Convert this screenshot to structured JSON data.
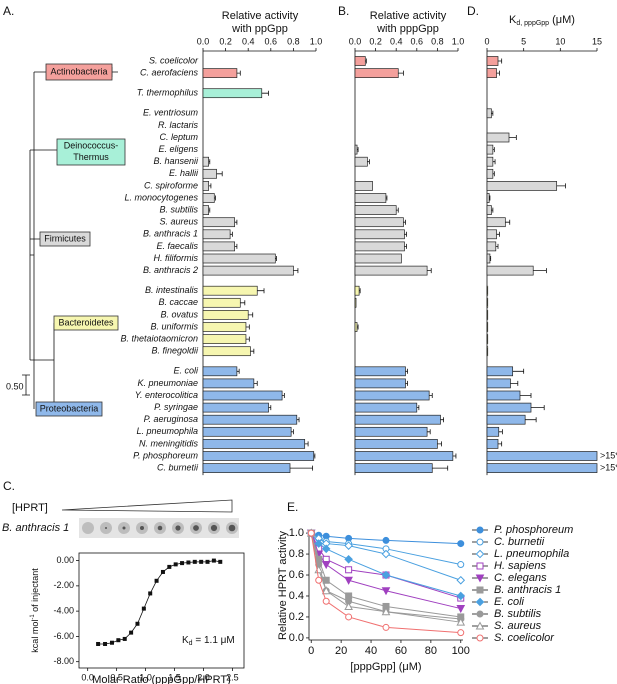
{
  "panel_labels": [
    "A.",
    "B.",
    "C.",
    "D.",
    "E."
  ],
  "tree": {
    "clades": [
      {
        "label": [
          "Actinobacteria"
        ],
        "color": "#f4a09c"
      },
      {
        "label": [
          "Deinococcus-",
          "Thermus"
        ],
        "color": "#a8f0d8"
      },
      {
        "label": [
          "Firmicutes"
        ],
        "color": "#d9d9d9"
      },
      {
        "label": [
          "Bacteroidetes"
        ],
        "color": "#f6f6b0"
      },
      {
        "label": [
          "Proteobacteria"
        ],
        "color": "#8fb8ea"
      }
    ],
    "scale_label": "0.50"
  },
  "gel": {
    "label": "[HPRT]",
    "strain": "B. anthracis 1"
  },
  "chart_data": [
    {
      "type": "hbar",
      "title": [
        "Relative activity",
        "with ppGpp"
      ],
      "categories": [
        "S. coelicolor",
        "C. aerofaciens",
        "T. thermophilus",
        "E. ventriosum",
        "R. lactaris",
        "C. leptum",
        "E. eligens",
        "B. hansenii",
        "E. hallii",
        "C. spiroforme",
        "L. monocytogenes",
        "B. subtilis",
        "S. aureus",
        "B. anthracis 1",
        "E. faecalis",
        "H. filiformis",
        "B. anthracis 2",
        "B. intestinalis",
        "B. caccae",
        "B. ovatus",
        "B. uniformis",
        "B. thetaiotaomicron",
        "B. finegoldii",
        "E. coli",
        "K. pneumoniae",
        "Y. enterocolitica",
        "P. syringae",
        "P. aeruginosa",
        "L. pneumophila",
        "N. meningitidis",
        "P. phosphoreum",
        "C. burnetii"
      ],
      "values": [
        0,
        0.3,
        0.52,
        0,
        0,
        0,
        0,
        0.05,
        0.12,
        0.05,
        0.1,
        0.05,
        0.28,
        0.24,
        0.28,
        0.64,
        0.8,
        0.48,
        0.33,
        0.4,
        0.38,
        0.38,
        0.42,
        0.3,
        0.45,
        0.7,
        0.58,
        0.83,
        0.78,
        0.9,
        0.98,
        0.77
      ],
      "errors": [
        0,
        0.03,
        0.06,
        0,
        0,
        0,
        0,
        0.01,
        0.05,
        0.02,
        0.01,
        0.01,
        0.02,
        0.02,
        0.02,
        0.01,
        0.04,
        0.06,
        0.04,
        0.04,
        0.03,
        0.03,
        0.03,
        0.02,
        0.03,
        0.02,
        0.02,
        0.02,
        0.02,
        0.03,
        0.01,
        0.2
      ],
      "colors": [
        "#f4a09c",
        "#f4a09c",
        "#a8f0d8",
        "#d9d9d9",
        "#d9d9d9",
        "#d9d9d9",
        "#d9d9d9",
        "#d9d9d9",
        "#d9d9d9",
        "#d9d9d9",
        "#d9d9d9",
        "#d9d9d9",
        "#d9d9d9",
        "#d9d9d9",
        "#d9d9d9",
        "#d9d9d9",
        "#d9d9d9",
        "#f6f6b0",
        "#f6f6b0",
        "#f6f6b0",
        "#f6f6b0",
        "#f6f6b0",
        "#f6f6b0",
        "#8fb8ea",
        "#8fb8ea",
        "#8fb8ea",
        "#8fb8ea",
        "#8fb8ea",
        "#8fb8ea",
        "#8fb8ea",
        "#8fb8ea",
        "#8fb8ea"
      ],
      "xlim": [
        0,
        1
      ],
      "xticks": [
        {
          "value": 0,
          "label": "0.0"
        },
        0.2,
        0.4,
        0.6,
        0.8,
        {
          "value": 1,
          "label": "1.0"
        }
      ]
    },
    {
      "type": "hbar",
      "title": [
        "Relative activity",
        "with pppGpp"
      ],
      "values": [
        0.1,
        0.42,
        0,
        0,
        0,
        0,
        0.02,
        0.12,
        0,
        0.17,
        0.3,
        0.4,
        0.47,
        0.48,
        0.48,
        0.45,
        0.7,
        0.04,
        0.01,
        0,
        0.02,
        0,
        0,
        0.49,
        0.49,
        0.72,
        0.6,
        0.83,
        0.7,
        0.8,
        0.95,
        0.75
      ],
      "errors": [
        0.01,
        0.05,
        0,
        0,
        0,
        0,
        0.01,
        0.02,
        0,
        0,
        0.01,
        0.02,
        0.02,
        0.02,
        0.02,
        0,
        0.04,
        0.01,
        0,
        0,
        0.01,
        0,
        0,
        0.02,
        0.02,
        0.03,
        0.02,
        0.03,
        0.03,
        0.04,
        0.03,
        0.15
      ],
      "colors": [
        "#f4a09c",
        "#f4a09c",
        "#a8f0d8",
        "#d9d9d9",
        "#d9d9d9",
        "#d9d9d9",
        "#d9d9d9",
        "#d9d9d9",
        "#d9d9d9",
        "#d9d9d9",
        "#d9d9d9",
        "#d9d9d9",
        "#d9d9d9",
        "#d9d9d9",
        "#d9d9d9",
        "#d9d9d9",
        "#d9d9d9",
        "#f6f6b0",
        "#f6f6b0",
        "#f6f6b0",
        "#f6f6b0",
        "#f6f6b0",
        "#f6f6b0",
        "#8fb8ea",
        "#8fb8ea",
        "#8fb8ea",
        "#8fb8ea",
        "#8fb8ea",
        "#8fb8ea",
        "#8fb8ea",
        "#8fb8ea",
        "#8fb8ea"
      ],
      "xlim": [
        0,
        1
      ],
      "xticks": [
        {
          "value": 0,
          "label": "0.0"
        },
        0.2,
        0.4,
        0.6,
        0.8,
        {
          "value": 1,
          "label": "1.0"
        }
      ]
    },
    {
      "type": "hbar",
      "title": [
        "K",
        "d, pppGpp",
        " (μM)"
      ],
      "values": [
        1.5,
        1.3,
        0,
        0.6,
        0,
        3,
        0.8,
        0.8,
        0.8,
        9.5,
        0.3,
        0.6,
        2.5,
        1.3,
        1.2,
        0.4,
        6.3,
        0.1,
        0.1,
        0.1,
        0.1,
        0.1,
        0.1,
        3.5,
        3.2,
        4.5,
        6,
        5.2,
        1.6,
        1.5,
        15,
        15
      ],
      "errors": [
        0.5,
        0.4,
        0,
        0.2,
        0,
        1,
        0.2,
        0.3,
        0.2,
        1.2,
        0.1,
        0.2,
        0.6,
        0.4,
        0.3,
        0.1,
        1.8,
        0,
        0,
        0,
        0,
        0,
        0,
        1.5,
        1,
        1.5,
        1.8,
        1.5,
        0.5,
        0.5,
        0,
        0
      ],
      "value_labels": [
        null,
        null,
        null,
        null,
        null,
        null,
        null,
        null,
        null,
        null,
        null,
        null,
        null,
        null,
        null,
        null,
        null,
        null,
        null,
        null,
        null,
        null,
        null,
        null,
        null,
        null,
        null,
        null,
        null,
        null,
        ">15*",
        ">15*"
      ],
      "colors": [
        "#f4a09c",
        "#f4a09c",
        "#a8f0d8",
        "#d9d9d9",
        "#d9d9d9",
        "#d9d9d9",
        "#d9d9d9",
        "#d9d9d9",
        "#d9d9d9",
        "#d9d9d9",
        "#d9d9d9",
        "#d9d9d9",
        "#d9d9d9",
        "#d9d9d9",
        "#d9d9d9",
        "#d9d9d9",
        "#d9d9d9",
        "#f6f6b0",
        "#f6f6b0",
        "#f6f6b0",
        "#f6f6b0",
        "#f6f6b0",
        "#f6f6b0",
        "#8fb8ea",
        "#8fb8ea",
        "#8fb8ea",
        "#8fb8ea",
        "#8fb8ea",
        "#8fb8ea",
        "#8fb8ea",
        "#8fb8ea",
        "#8fb8ea"
      ],
      "xlim": [
        0,
        15
      ],
      "xticks": [
        0,
        5,
        10,
        15
      ]
    },
    {
      "type": "scatter",
      "xlabel": "Molar Ratio (pppGpp/HPRT)",
      "ylabel": [
        "kcal mol",
        "-1",
        " of injectant"
      ],
      "annotation": [
        "K",
        "d",
        " = 1.1 μM"
      ],
      "color": "#111111",
      "x": [
        0.18,
        0.3,
        0.42,
        0.53,
        0.64,
        0.75,
        0.86,
        0.97,
        1.08,
        1.19,
        1.3,
        1.41,
        1.52,
        1.63,
        1.74,
        1.85,
        1.96,
        2.07,
        2.18,
        2.29
      ],
      "values": [
        -6.6,
        -6.6,
        -6.5,
        -6.3,
        -6.2,
        -5.7,
        -5.0,
        -3.8,
        -2.6,
        -1.6,
        -0.9,
        -0.5,
        -0.3,
        -0.2,
        -0.15,
        -0.1,
        -0.1,
        -0.1,
        0.0,
        -0.1
      ],
      "xlim": [
        -0.15,
        2.7
      ],
      "ylim": [
        -8.5,
        0.6
      ],
      "xticks": [
        {
          "value": 0,
          "label": "0.0"
        },
        0.5,
        {
          "value": 1,
          "label": "1.0"
        },
        1.5,
        {
          "value": 2,
          "label": "2.0"
        },
        2.5
      ],
      "yticks": [
        {
          "value": -8,
          "label": "-8.00"
        },
        {
          "value": -6,
          "label": "-6.00"
        },
        {
          "value": -4,
          "label": "-4.00"
        },
        {
          "value": -2,
          "label": "-2.00"
        },
        {
          "value": 0,
          "label": "0.00"
        }
      ]
    },
    {
      "type": "line",
      "xlabel": "[pppGpp] (μM)",
      "ylabel": "Relative HPRT activity",
      "x": [
        0,
        5,
        10,
        25,
        50,
        100
      ],
      "series": [
        {
          "name": "P. phosphoreum",
          "color": "#3d8fdc",
          "marker": "circle",
          "values": [
            1,
            0.98,
            0.97,
            0.95,
            0.93,
            0.9
          ]
        },
        {
          "name": "C. burnetii",
          "color": "#4aa0e0",
          "marker": "circle-open",
          "values": [
            1,
            0.95,
            0.92,
            0.9,
            0.85,
            0.7
          ]
        },
        {
          "name": "L. pneumophila",
          "color": "#4aa0e0",
          "marker": "diamond-open",
          "values": [
            1,
            0.95,
            0.9,
            0.88,
            0.8,
            0.55
          ]
        },
        {
          "name": "H. sapiens",
          "color": "#a040c0",
          "marker": "square-open",
          "values": [
            1,
            0.85,
            0.75,
            0.65,
            0.6,
            0.38
          ]
        },
        {
          "name": "C. elegans",
          "color": "#a040c0",
          "marker": "triangle-down",
          "values": [
            1,
            0.8,
            0.7,
            0.55,
            0.45,
            0.28
          ]
        },
        {
          "name": "B. anthracis 1",
          "color": "#9a9a9a",
          "marker": "square",
          "values": [
            1,
            0.75,
            0.55,
            0.4,
            0.3,
            0.2
          ]
        },
        {
          "name": "E. coli",
          "color": "#4aa0e0",
          "marker": "diamond",
          "values": [
            1,
            0.9,
            0.85,
            0.75,
            0.6,
            0.4
          ]
        },
        {
          "name": "B. subtilis",
          "color": "#9a9a9a",
          "marker": "circle",
          "values": [
            1,
            0.7,
            0.45,
            0.35,
            0.25,
            0.18
          ]
        },
        {
          "name": "S. aureus",
          "color": "#9a9a9a",
          "marker": "triangle-open",
          "values": [
            1,
            0.65,
            0.45,
            0.3,
            0.25,
            0.15
          ]
        },
        {
          "name": "S. coelicolor",
          "color": "#f07070",
          "marker": "circle-open",
          "values": [
            1,
            0.55,
            0.35,
            0.2,
            0.1,
            0.05
          ]
        }
      ],
      "xlim": [
        -1.5,
        101.5
      ],
      "ylim": [
        -0.02,
        1.02
      ],
      "xticks": [
        0,
        20,
        40,
        60,
        80,
        100
      ],
      "yticks": [
        {
          "value": 0,
          "label": "0.0"
        },
        0.2,
        0.4,
        0.6,
        0.8,
        {
          "value": 1,
          "label": "1.0"
        }
      ]
    }
  ]
}
